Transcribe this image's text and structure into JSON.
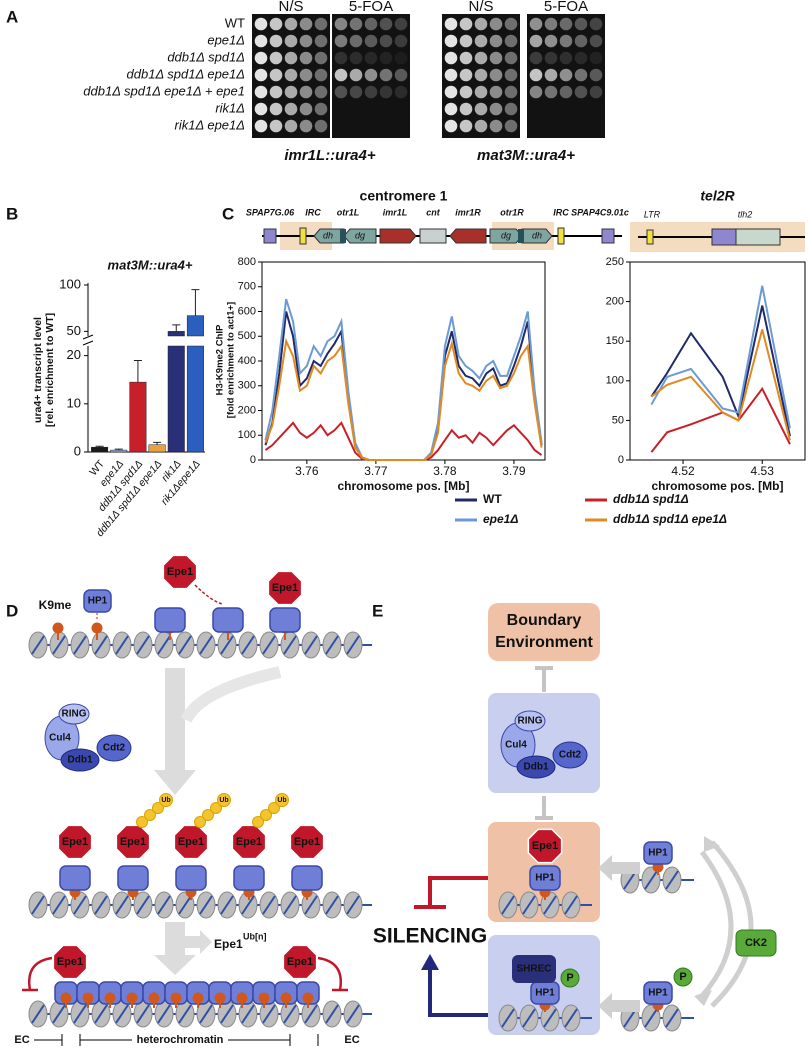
{
  "panel_labels": [
    "A",
    "B",
    "C",
    "D",
    "E"
  ],
  "spot_assay": {
    "columns": [
      "N/S",
      "5-FOA",
      "N/S",
      "5-FOA"
    ],
    "strains": [
      "WT",
      "epe1Δ",
      "ddb1Δ spd1Δ",
      "ddb1Δ spd1Δ epe1Δ",
      "ddb1Δ spd1Δ epe1Δ + epe1",
      "rik1Δ",
      "rik1Δ epe1Δ"
    ],
    "reporters": [
      "imr1L::ura4+",
      "mat3M::ura4+"
    ]
  },
  "chart_data": [
    {
      "type": "bar",
      "title": "mat3M::ura4+",
      "y_label": [
        "ura4+ transcript level",
        "[rel. enrichment to WT]"
      ],
      "categories": [
        "WT",
        "epe1Δ",
        "ddb1Δ spd1Δ",
        "ddb1Δ spd1Δ epe1Δ",
        "rik1Δ",
        "rik1Δepe1Δ"
      ],
      "values": [
        1,
        0.4,
        14.5,
        1.5,
        50,
        67
      ],
      "errors": [
        0.2,
        0.2,
        4.5,
        0.5,
        7,
        28
      ],
      "colors": [
        "#1a1a1a",
        "#8fb0e0",
        "#c8202a",
        "#e8a040",
        "#2a2f7a",
        "#2a5fc0"
      ],
      "ylim_lower": [
        0,
        22
      ],
      "yticks_lower": [
        0,
        10,
        20
      ],
      "ylim_upper": [
        45,
        100
      ],
      "yticks_upper": [
        50,
        100
      ]
    },
    {
      "type": "line",
      "title": "centromere 1",
      "x_label": "chromosome pos. [Mb]",
      "y_label": [
        "H3-K9me2 ChIP",
        "[fold enrichment to act1+]"
      ],
      "map_labels": [
        "SPAP7G.06",
        "IRC",
        "otr1L",
        "imr1L",
        "cnt",
        "imr1R",
        "otr1R",
        "IRC",
        "SPAP4C9.01c"
      ],
      "map_repeat_labels": [
        "dh",
        "dg",
        "dg",
        "dh"
      ],
      "x": [
        3.754,
        3.755,
        3.756,
        3.757,
        3.758,
        3.759,
        3.76,
        3.761,
        3.762,
        3.763,
        3.764,
        3.765,
        3.766,
        3.767,
        3.768,
        3.769,
        3.77,
        3.771,
        3.772,
        3.773,
        3.774,
        3.775,
        3.776,
        3.777,
        3.778,
        3.779,
        3.78,
        3.781,
        3.782,
        3.783,
        3.784,
        3.785,
        3.786,
        3.787,
        3.788,
        3.789,
        3.79,
        3.791,
        3.792,
        3.793,
        3.794
      ],
      "series": [
        {
          "name": "WT",
          "color": "#1f2a6b",
          "values": [
            60,
            150,
            350,
            600,
            500,
            300,
            330,
            400,
            380,
            430,
            470,
            520,
            250,
            60,
            10,
            0,
            0,
            0,
            0,
            0,
            0,
            0,
            0,
            0,
            20,
            120,
            420,
            520,
            380,
            340,
            330,
            300,
            350,
            370,
            300,
            310,
            380,
            460,
            560,
            250,
            60
          ]
        },
        {
          "name": "epe1Δ",
          "color": "#6c9ad6",
          "values": [
            80,
            200,
            420,
            650,
            560,
            350,
            380,
            460,
            420,
            480,
            500,
            560,
            280,
            70,
            10,
            0,
            0,
            0,
            0,
            0,
            0,
            0,
            0,
            0,
            30,
            150,
            460,
            580,
            420,
            380,
            360,
            330,
            380,
            400,
            340,
            340,
            420,
            500,
            600,
            280,
            70
          ]
        },
        {
          "name": "ddb1Δ spd1Δ",
          "color": "#c8202a",
          "values": [
            40,
            60,
            90,
            120,
            150,
            110,
            90,
            110,
            140,
            100,
            120,
            150,
            90,
            30,
            5,
            0,
            0,
            0,
            0,
            0,
            0,
            0,
            0,
            0,
            10,
            40,
            80,
            120,
            90,
            100,
            70,
            110,
            90,
            60,
            90,
            120,
            140,
            110,
            80,
            40,
            20
          ]
        },
        {
          "name": "ddb1Δ spd1Δ epe1Δ",
          "color": "#e08a20",
          "values": [
            70,
            140,
            300,
            480,
            420,
            280,
            300,
            380,
            350,
            400,
            420,
            460,
            230,
            50,
            10,
            0,
            0,
            0,
            0,
            0,
            0,
            0,
            0,
            0,
            20,
            110,
            380,
            470,
            350,
            310,
            300,
            280,
            320,
            340,
            290,
            300,
            350,
            420,
            460,
            230,
            50
          ]
        }
      ],
      "xlim": [
        3.7535,
        3.7945
      ],
      "xticks": [
        3.76,
        3.77,
        3.78,
        3.79
      ],
      "ylim": [
        0,
        800
      ],
      "yticks": [
        0,
        100,
        200,
        300,
        400,
        500,
        600,
        700,
        800
      ]
    },
    {
      "type": "line",
      "title": "tel2R",
      "x_label": "chromosome pos. [Mb]",
      "map_labels": [
        "LTR",
        "tlh2"
      ],
      "x": [
        4.516,
        4.518,
        4.521,
        4.525,
        4.527,
        4.53,
        4.5335
      ],
      "series": [
        {
          "name": "WT",
          "color": "#1f2a6b",
          "values": [
            80,
            110,
            160,
            105,
            55,
            195,
            30
          ]
        },
        {
          "name": "epe1Δ",
          "color": "#6c9ad6",
          "values": [
            70,
            105,
            115,
            65,
            60,
            220,
            40
          ]
        },
        {
          "name": "ddb1Δ spd1Δ",
          "color": "#c8202a",
          "values": [
            10,
            35,
            45,
            60,
            50,
            90,
            20
          ]
        },
        {
          "name": "ddb1Δ spd1Δ epe1Δ",
          "color": "#e08a20",
          "values": [
            80,
            95,
            105,
            60,
            50,
            165,
            25
          ]
        }
      ],
      "xlim": [
        4.5133,
        4.5354
      ],
      "xticks": [
        4.52,
        4.53
      ],
      "ylim": [
        0,
        250
      ],
      "yticks": [
        0,
        50,
        100,
        150,
        200,
        250
      ]
    }
  ],
  "diagram_d": {
    "k9me": "K9me",
    "hp1": "HP1",
    "epe1_top": [
      "Epe1",
      "Epe1"
    ],
    "complex": [
      "RING",
      "Cul4",
      "Ddb1",
      "Cdt2"
    ],
    "epe1_middle": [
      "Epe1",
      "Epe1",
      "Epe1",
      "Epe1",
      "Epe1"
    ],
    "ub": [
      "Ub",
      "Ub",
      "Ub"
    ],
    "released": "Epe1",
    "released_sup": "Ub[n]",
    "epe1_bottom": [
      "Epe1",
      "Epe1"
    ],
    "domains": [
      "EC",
      "heterochromatin",
      "EC"
    ]
  },
  "diagram_e": {
    "boundary": [
      "Boundary",
      "Environment"
    ],
    "complex": [
      "RING",
      "Cul4",
      "Ddb1",
      "Cdt2"
    ],
    "epe1": "Epe1",
    "hp1_boxes": [
      "HP1",
      "HP1",
      "HP1",
      "HP1"
    ],
    "silencing": "SILENCING",
    "shrec": "SHREC",
    "p": [
      "P",
      "P"
    ],
    "ck2": "CK2"
  }
}
